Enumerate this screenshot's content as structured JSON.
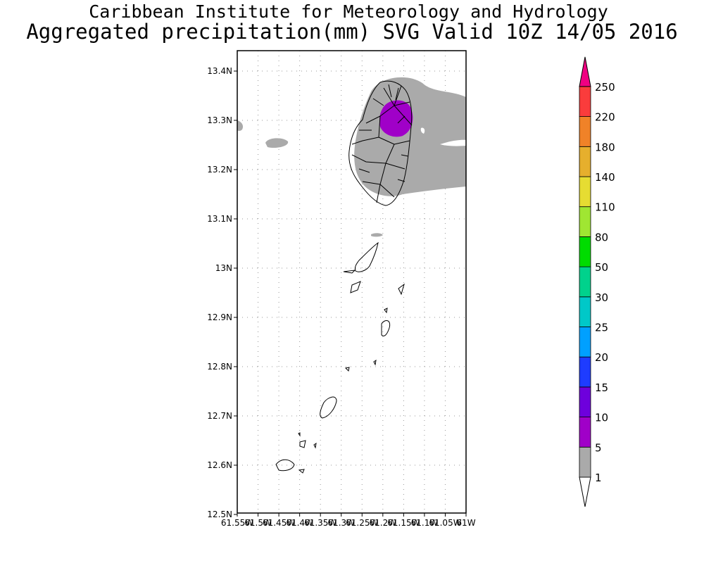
{
  "header": {
    "line1": "Caribbean Institute for Meteorology and Hydrology",
    "line2": "Aggregated precipitation(mm) SVG Valid 10Z 14/05 2016"
  },
  "map": {
    "lat_labels": [
      "13.4N",
      "13.3N",
      "13.2N",
      "13.1N",
      "13N",
      "12.9N",
      "12.8N",
      "12.7N",
      "12.6N",
      "12.5N"
    ],
    "lon_labels": [
      "61.55W",
      "61.5W",
      "61.45W",
      "61.4W",
      "61.35W",
      "61.3W",
      "61.25W",
      "61.2W",
      "61.15W",
      "61.1W",
      "61.05W",
      "61W"
    ],
    "lat_range": [
      12.5,
      13.44
    ],
    "lon_range": [
      -61.55,
      -61.0
    ]
  },
  "colorbar": {
    "levels": [
      "1",
      "5",
      "10",
      "15",
      "20",
      "25",
      "30",
      "50",
      "80",
      "110",
      "140",
      "180",
      "220",
      "250"
    ],
    "colors": [
      "#aaaaaa",
      "#a000c8",
      "#6e00dc",
      "#1e3cff",
      "#00a0ff",
      "#00c8c8",
      "#00d28c",
      "#00dc00",
      "#a0e632",
      "#e6dc32",
      "#e6af2d",
      "#f08228",
      "#fa3c3c",
      "#f00082"
    ]
  }
}
